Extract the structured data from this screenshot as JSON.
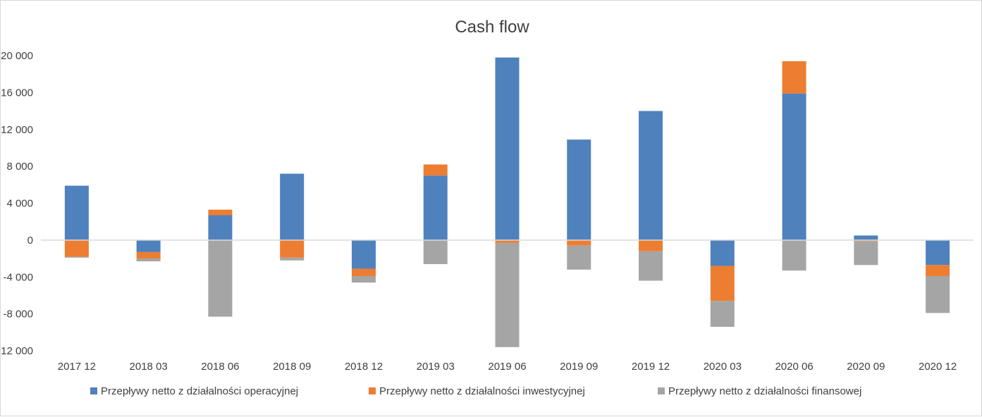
{
  "chart_data": {
    "type": "bar",
    "stacked": true,
    "title": "Cash flow",
    "xlabel": "",
    "ylabel": "",
    "ylim": [
      -12000,
      20000
    ],
    "yticks": [
      20000,
      16000,
      12000,
      8000,
      4000,
      0,
      -4000,
      -8000,
      -12000
    ],
    "ytick_labels": [
      "20 000",
      "16 000",
      "12 000",
      "8 000",
      "4 000",
      "0",
      "-4 000",
      "-8 000",
      "-12 000"
    ],
    "grid": false,
    "legend_position": "bottom",
    "categories": [
      "2017 12",
      "2018 03",
      "2018 06",
      "2018 09",
      "2018 12",
      "2019 03",
      "2019 06",
      "2019 09",
      "2019 12",
      "2020 03",
      "2020 06",
      "2020 09",
      "2020 12"
    ],
    "series": [
      {
        "name": "Przepływy netto z działalności operacyjnej",
        "color": "#4f81bd",
        "values": [
          5900,
          -1300,
          2700,
          7200,
          -3100,
          7000,
          19800,
          10900,
          14000,
          -2800,
          15900,
          500,
          -2700
        ]
      },
      {
        "name": "Przepływy netto z działalności inwestycyjnej",
        "color": "#ed7d31",
        "values": [
          -1800,
          -700,
          600,
          -1900,
          -800,
          1200,
          -300,
          -600,
          -1200,
          -3800,
          3500,
          -100,
          -1200
        ]
      },
      {
        "name": "Przepływy netto z działalności finansowej",
        "color": "#a5a5a5",
        "values": [
          -100,
          -300,
          -8300,
          -300,
          -700,
          -2600,
          -11300,
          -2600,
          -3200,
          -2800,
          -3300,
          -2600,
          -4000
        ]
      }
    ]
  }
}
